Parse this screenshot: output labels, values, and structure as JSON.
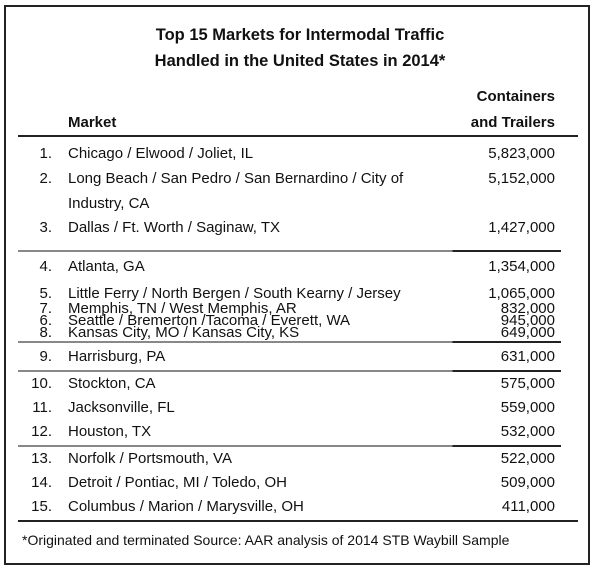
{
  "title": [
    "Top 15 Markets for Intermodal Traffic",
    "Handled in the United States in 2014*"
  ],
  "header": {
    "market": "Market",
    "value_line1": "Containers",
    "value_line2": "and Trailers"
  },
  "groups": [
    [
      {
        "rank": "1.",
        "market": "Chicago / Elwood / Joliet, IL",
        "value": "5,823,000"
      },
      {
        "rank": "2.",
        "market": "Long Beach / San Pedro / San Bernardino / City of Industry, CA",
        "value": "5,152,000"
      },
      {
        "rank": "3.",
        "market": "Dallas / Ft. Worth / Saginaw, TX",
        "value": "1,427,000"
      }
    ],
    [
      {
        "rank": "4.",
        "market": "Atlanta, GA",
        "value": "1,354,000"
      },
      {
        "rank": "5.",
        "market": "Little Ferry / North Bergen / South Kearny / Jersey",
        "value": "1,065,000"
      },
      {
        "rank": "6.",
        "market": "Seattle / Bremerton /Tacoma / Everett, WA",
        "value": "945,000"
      }
    ],
    [
      {
        "rank": "7.",
        "market": "Memphis, TN / West Memphis, AR",
        "value": "832,000"
      },
      {
        "rank": "8.",
        "market": "Kansas City, MO / Kansas City, KS",
        "value": "649,000"
      },
      {
        "rank": "9.",
        "market": "Harrisburg, PA",
        "value": "631,000"
      }
    ],
    [
      {
        "rank": "10.",
        "market": "Stockton, CA",
        "value": "575,000"
      },
      {
        "rank": "11.",
        "market": "Jacksonville, FL",
        "value": "559,000"
      },
      {
        "rank": "12.",
        "market": "Houston, TX",
        "value": "532,000"
      }
    ],
    [
      {
        "rank": "13.",
        "market": "Norfolk / Portsmouth, VA",
        "value": "522,000"
      },
      {
        "rank": "14.",
        "market": "Detroit / Pontiac, MI / Toledo, OH",
        "value": "509,000"
      },
      {
        "rank": "15.",
        "market": "Columbus / Marion / Marysville, OH",
        "value": "411,000"
      }
    ]
  ],
  "footnote": "*Originated and terminated   Source: AAR analysis of 2014 STB Waybill Sample"
}
